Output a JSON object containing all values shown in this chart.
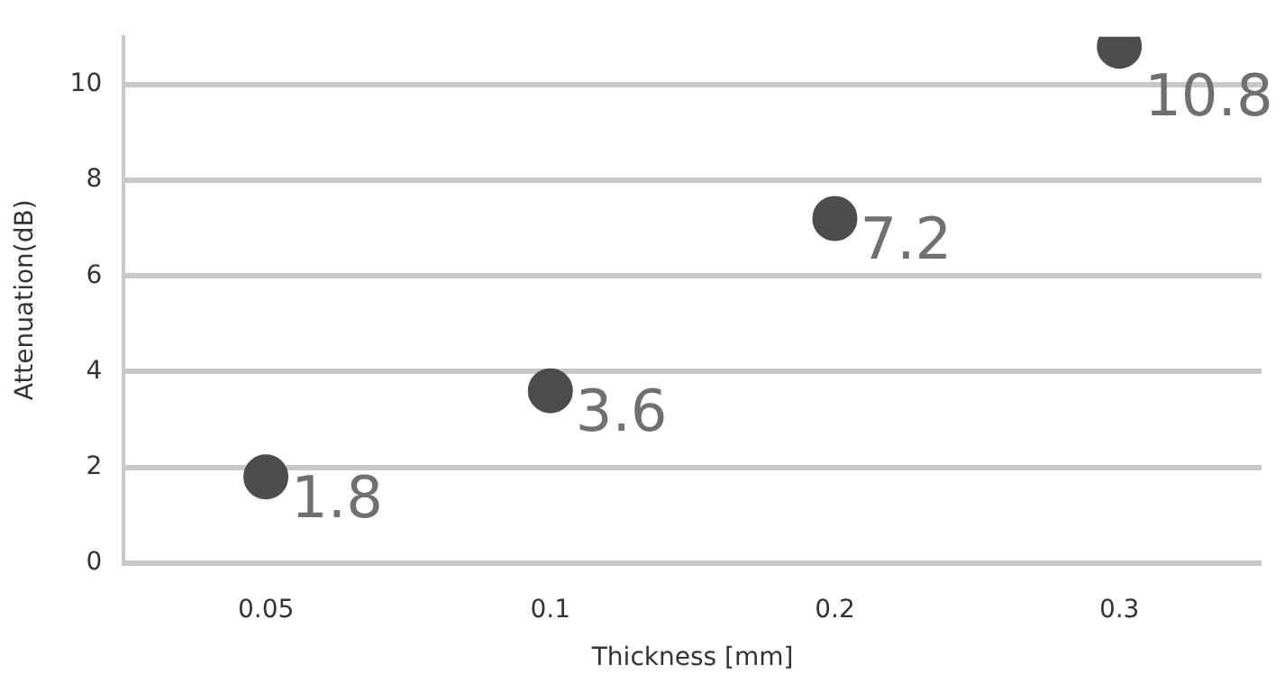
{
  "chart_data": {
    "type": "scatter",
    "xlabel": "Thickness [mm]",
    "ylabel": "Attenuation(dB)",
    "categories": [
      "0.05",
      "0.1",
      "0.2",
      "0.3"
    ],
    "series": [
      {
        "color": "#4d4d4d",
        "values": [
          1.8,
          3.6,
          7.2,
          10.8
        ]
      }
    ],
    "ylim": [
      0,
      11
    ],
    "yticks": [
      0,
      2,
      4,
      6,
      8,
      10
    ],
    "grid": "y",
    "legend": false,
    "marker": "circle",
    "data_labels": true
  }
}
